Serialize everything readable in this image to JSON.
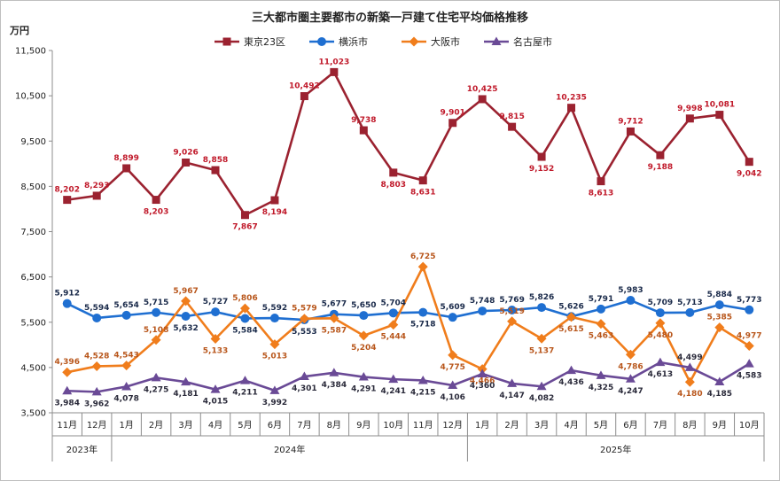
{
  "chart_data": {
    "type": "line",
    "title": "三大都市圏主要都市の新築一戸建て住宅平均価格推移",
    "ylabel": "万円",
    "ylim": [
      3500,
      11500
    ],
    "yticks": [
      "3,500",
      "4,500",
      "5,500",
      "6,500",
      "7,500",
      "8,500",
      "9,500",
      "10,500",
      "11,500"
    ],
    "ytick_values": [
      3500,
      4500,
      5500,
      6500,
      7500,
      8500,
      9500,
      10500,
      11500
    ],
    "categories": [
      "11月",
      "12月",
      "1月",
      "2月",
      "3月",
      "4月",
      "5月",
      "6月",
      "7月",
      "8月",
      "9月",
      "10月",
      "11月",
      "12月",
      "1月",
      "2月",
      "3月",
      "4月",
      "5月",
      "6月",
      "7月",
      "8月",
      "9月",
      "10月"
    ],
    "years": [
      {
        "label": "2023年",
        "start": 0,
        "end": 1
      },
      {
        "label": "2024年",
        "start": 2,
        "end": 13
      },
      {
        "label": "2025年",
        "start": 14,
        "end": 23
      }
    ],
    "series": [
      {
        "name": "東京23区",
        "color": "#9b2230",
        "label_color": "#c0192a",
        "marker": "square",
        "values": [
          8202,
          8293,
          8899,
          8203,
          9026,
          8858,
          7867,
          8194,
          10492,
          11023,
          9738,
          8803,
          8631,
          9901,
          10425,
          9815,
          9152,
          10235,
          8613,
          9712,
          9188,
          9998,
          10081,
          9042
        ],
        "labels": [
          "8,202",
          "8,293",
          "8,899",
          "8,203",
          "9,026",
          "8,858",
          "7,867",
          "8,194",
          "10,492",
          "11,023",
          "9,738",
          "8,803",
          "8,631",
          "9,901",
          "10,425",
          "9,815",
          "9,152",
          "10,235",
          "8,613",
          "9,712",
          "9,188",
          "9,998",
          "10,081",
          "9,042"
        ],
        "label_pos": [
          "above",
          "above",
          "above",
          "below",
          "above",
          "above",
          "below",
          "below",
          "above",
          "above",
          "above",
          "below",
          "below",
          "above",
          "above",
          "above",
          "below",
          "above",
          "below",
          "above",
          "below",
          "above",
          "above",
          "below"
        ]
      },
      {
        "name": "横浜市",
        "color": "#1f6fd1",
        "label_color": "#1a2a4a",
        "marker": "circle",
        "values": [
          5912,
          5594,
          5654,
          5715,
          5632,
          5727,
          5584,
          5592,
          5553,
          5677,
          5650,
          5704,
          5718,
          5609,
          5748,
          5769,
          5826,
          5626,
          5791,
          5983,
          5709,
          5713,
          5884,
          5773
        ],
        "labels": [
          "5,912",
          "5,594",
          "5,654",
          "5,715",
          "5,632",
          "5,727",
          "5,584",
          "5,592",
          "5,553",
          "5,677",
          "5,650",
          "5,704",
          "5,718",
          "5,609",
          "5,748",
          "5,769",
          "5,826",
          "5,626",
          "5,791",
          "5,983",
          "5,709",
          "5,713",
          "5,884",
          "5,773"
        ],
        "label_pos": [
          "above",
          "above",
          "above",
          "above",
          "below",
          "above",
          "below",
          "above",
          "below",
          "above",
          "above",
          "above",
          "below",
          "above",
          "above",
          "above",
          "above",
          "above",
          "above",
          "above",
          "above",
          "above",
          "above",
          "above"
        ]
      },
      {
        "name": "大阪市",
        "color": "#f07d1c",
        "label_color": "#b8561b",
        "marker": "diamond",
        "values": [
          4396,
          4528,
          4543,
          5108,
          5967,
          5133,
          5806,
          5013,
          5579,
          5587,
          5204,
          5444,
          6725,
          4775,
          4466,
          5519,
          5137,
          5615,
          5463,
          4786,
          5480,
          4180,
          5385,
          4977
        ],
        "labels": [
          "4,396",
          "4,528",
          "4,543",
          "5,108",
          "5,967",
          "5,133",
          "5,806",
          "5,013",
          "5,579",
          "5,587",
          "5,204",
          "5,444",
          "6,725",
          "4,775",
          "4,466",
          "5,519",
          "5,137",
          "5,615",
          "5,463",
          "4,786",
          "5,480",
          "4,180",
          "5,385",
          "4,977"
        ],
        "label_pos": [
          "above",
          "above",
          "above",
          "above",
          "above",
          "below",
          "above",
          "below",
          "above",
          "below",
          "below",
          "below",
          "above",
          "below",
          "below",
          "above",
          "below",
          "below",
          "below",
          "below",
          "below",
          "below",
          "above",
          "above"
        ]
      },
      {
        "name": "名古屋市",
        "color": "#6a4a96",
        "label_color": "#2a2a3a",
        "marker": "triangle",
        "values": [
          3984,
          3962,
          4078,
          4275,
          4181,
          4015,
          4211,
          3992,
          4301,
          4384,
          4291,
          4241,
          4215,
          4106,
          4360,
          4147,
          4082,
          4436,
          4325,
          4247,
          4613,
          4499,
          4185,
          4583
        ],
        "labels": [
          "3,984",
          "3,962",
          "4,078",
          "4,275",
          "4,181",
          "4,015",
          "4,211",
          "3,992",
          "4,301",
          "4,384",
          "4,291",
          "4,241",
          "4,215",
          "4,106",
          "4,360",
          "4,147",
          "4,082",
          "4,436",
          "4,325",
          "4,247",
          "4,613",
          "4,499",
          "4,185",
          "4,583"
        ],
        "label_pos": [
          "below",
          "below",
          "below",
          "below",
          "below",
          "below",
          "below",
          "below",
          "below",
          "below",
          "below",
          "below",
          "below",
          "below",
          "below",
          "below",
          "below",
          "below",
          "below",
          "below",
          "below",
          "above",
          "below",
          "below"
        ]
      }
    ],
    "legend": "top-center",
    "grid": false
  }
}
